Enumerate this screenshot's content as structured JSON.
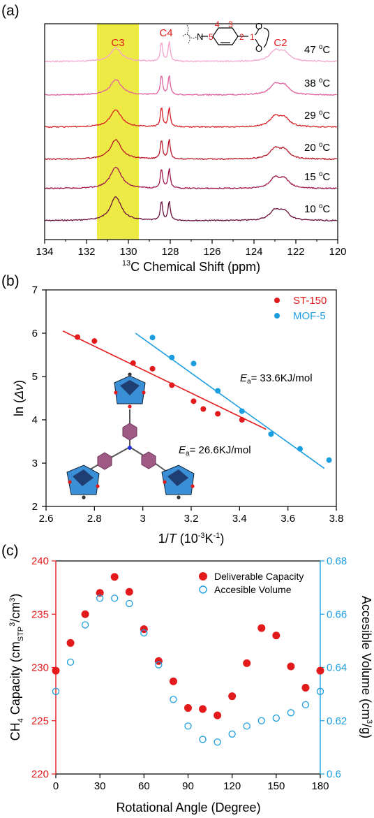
{
  "panels": {
    "a": {
      "letter": "(a)"
    },
    "b": {
      "letter": "(b)"
    },
    "c": {
      "letter": "(c)"
    }
  },
  "chart_data": [
    {
      "type": "line",
      "panel": "(a)",
      "xlabel_sup": "13",
      "xlabel_main": "C Chemical Shift (ppm)",
      "xlim": [
        134,
        120
      ],
      "xticks": [
        "134",
        "132",
        "130",
        "128",
        "126",
        "124",
        "122",
        "120"
      ],
      "x_reversed": true,
      "highlight_band": {
        "x": [
          131.5,
          129.5
        ],
        "color": "#eeea45"
      },
      "peak_labels": [
        "C3",
        "C4",
        "C2"
      ],
      "peak_label_color": "#e11b1b",
      "molecule_atoms": [
        "N",
        "5",
        "4",
        "3",
        "2",
        "1",
        "O",
        "O"
      ],
      "series": [
        {
          "name": "10 °C",
          "deg": "o",
          "temp": "10",
          "color": "#6a0f3a"
        },
        {
          "name": "15 °C",
          "deg": "o",
          "temp": "15",
          "color": "#a0154e"
        },
        {
          "name": "20 °C",
          "deg": "o",
          "temp": "20",
          "color": "#b8162a"
        },
        {
          "name": "29 °C",
          "deg": "o",
          "temp": "29",
          "color": "#d81f26"
        },
        {
          "name": "38 °C",
          "deg": "o",
          "temp": "38",
          "color": "#e0609e"
        },
        {
          "name": "47 °C",
          "deg": "o",
          "temp": "47",
          "color": "#f3a3cd"
        }
      ]
    },
    {
      "type": "scatter",
      "panel": "(b)",
      "xlabel_parts": [
        "1/",
        "T",
        " (10",
        "-3",
        "K",
        "-1",
        ")"
      ],
      "ylabel_parts": [
        "ln (",
        "Δν",
        ")"
      ],
      "xlim": [
        2.6,
        3.8
      ],
      "ylim": [
        2,
        7
      ],
      "xticks": [
        "2.6",
        "2.8",
        "3",
        "3.2",
        "3.4",
        "3.6",
        "3.8"
      ],
      "yticks": [
        "2",
        "3",
        "4",
        "5",
        "6",
        "7"
      ],
      "legend": "top-right",
      "series": [
        {
          "name": "ST-150",
          "color": "#e31a1c",
          "x": [
            2.73,
            2.8,
            2.96,
            3.04,
            3.12,
            3.21,
            3.25,
            3.31,
            3.41
          ],
          "y": [
            5.91,
            5.82,
            5.31,
            5.18,
            4.8,
            4.43,
            4.25,
            4.14,
            4.0
          ],
          "fit": {
            "x": [
              2.67,
              3.51
            ],
            "y": [
              6.05,
              3.78
            ]
          },
          "annotation": {
            "sym": "E",
            "sub": "a",
            "text": "= 26.6KJ/mol"
          }
        },
        {
          "name": "MOF-5",
          "color": "#1b9ee0",
          "x": [
            3.04,
            3.12,
            3.21,
            3.31,
            3.41,
            3.53,
            3.65,
            3.77
          ],
          "y": [
            5.9,
            5.44,
            5.3,
            4.67,
            4.2,
            3.67,
            3.33,
            3.07
          ],
          "fit": {
            "x": [
              2.97,
              3.75
            ],
            "y": [
              6.0,
              2.88
            ]
          },
          "annotation": {
            "sym": "E",
            "sub": "a",
            "text": "= 33.6KJ/mol"
          }
        }
      ]
    },
    {
      "type": "scatter",
      "panel": "(c)",
      "xlabel": "Rotational Angle (Degree)",
      "ylabel_left_parts": [
        "CH",
        "4",
        " Capacity (cm",
        "STP",
        "3",
        "/cm",
        "3",
        ")"
      ],
      "ylabel_right_parts": [
        "Accesible Volume (cm",
        "3",
        "/g)"
      ],
      "xlim": [
        0,
        180
      ],
      "ylim_left": [
        220,
        240
      ],
      "ylim_right": [
        0.6,
        0.68
      ],
      "xticks": [
        "0",
        "30",
        "60",
        "90",
        "120",
        "150",
        "180"
      ],
      "yticks_left": [
        "220",
        "225",
        "230",
        "235",
        "240"
      ],
      "yticks_right": [
        "0.6",
        "0.62",
        "0.64",
        "0.66",
        "0.68"
      ],
      "left_axis_color": "#e31a1c",
      "right_axis_color": "#1b9ee0",
      "legend": "top-right",
      "x": [
        0,
        10,
        20,
        30,
        40,
        50,
        60,
        70,
        80,
        90,
        100,
        110,
        120,
        130,
        140,
        150,
        160,
        170,
        180
      ],
      "series": [
        {
          "name": "Deliverable Capacity",
          "axis": "left",
          "color": "#e31a1c",
          "marker": "filled",
          "values": [
            229.7,
            232.3,
            235.0,
            237.0,
            238.5,
            237.1,
            233.6,
            230.6,
            228.7,
            226.2,
            226.1,
            225.5,
            227.3,
            230.4,
            233.7,
            233.0,
            230.1,
            228.1,
            229.7
          ]
        },
        {
          "name": "Accesible Volume",
          "axis": "right",
          "color": "#1b9ee0",
          "marker": "open",
          "values": [
            0.631,
            0.642,
            0.656,
            0.666,
            0.666,
            0.664,
            0.653,
            0.641,
            0.628,
            0.618,
            0.613,
            0.612,
            0.615,
            0.618,
            0.62,
            0.621,
            0.623,
            0.626,
            0.631
          ]
        }
      ]
    }
  ]
}
